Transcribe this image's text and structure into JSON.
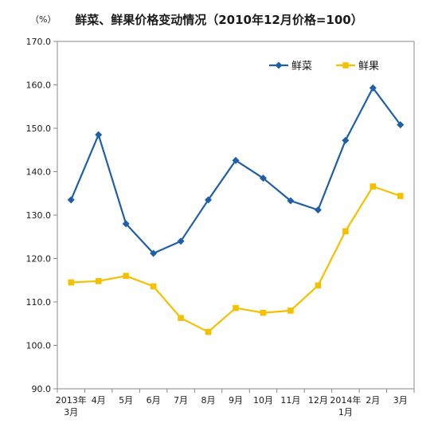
{
  "chart_data": {
    "type": "line",
    "title": "鲜菜、鲜果价格变动情况（2010年12月价格=100）",
    "ylabel": "（%）",
    "xlabel": "",
    "ylim": [
      90,
      170
    ],
    "yticks": [
      "90.0",
      "100.0",
      "110.0",
      "120.0",
      "130.0",
      "140.0",
      "150.0",
      "160.0",
      "170.0"
    ],
    "categories": [
      [
        "2013年",
        "3月"
      ],
      [
        "4月"
      ],
      [
        "5月"
      ],
      [
        "6月"
      ],
      [
        "7月"
      ],
      [
        "8月"
      ],
      [
        "9月"
      ],
      [
        "10月"
      ],
      [
        "11月"
      ],
      [
        "12月"
      ],
      [
        "2014年",
        "1月"
      ],
      [
        "2月"
      ],
      [
        "3月"
      ]
    ],
    "series": [
      {
        "name": "鲜菜",
        "color": "#1f5fa8",
        "marker": "diamond",
        "values": [
          133.5,
          148.5,
          128.0,
          121.2,
          124.0,
          133.5,
          142.6,
          138.5,
          133.3,
          131.2,
          147.2,
          159.3,
          150.8
        ]
      },
      {
        "name": "鲜果",
        "color": "#f5c000",
        "marker": "square",
        "values": [
          114.5,
          114.8,
          116.0,
          113.6,
          106.3,
          103.1,
          108.6,
          107.5,
          108.0,
          113.8,
          126.3,
          136.6,
          134.4
        ]
      }
    ],
    "grid": false,
    "legend": "top-right"
  }
}
